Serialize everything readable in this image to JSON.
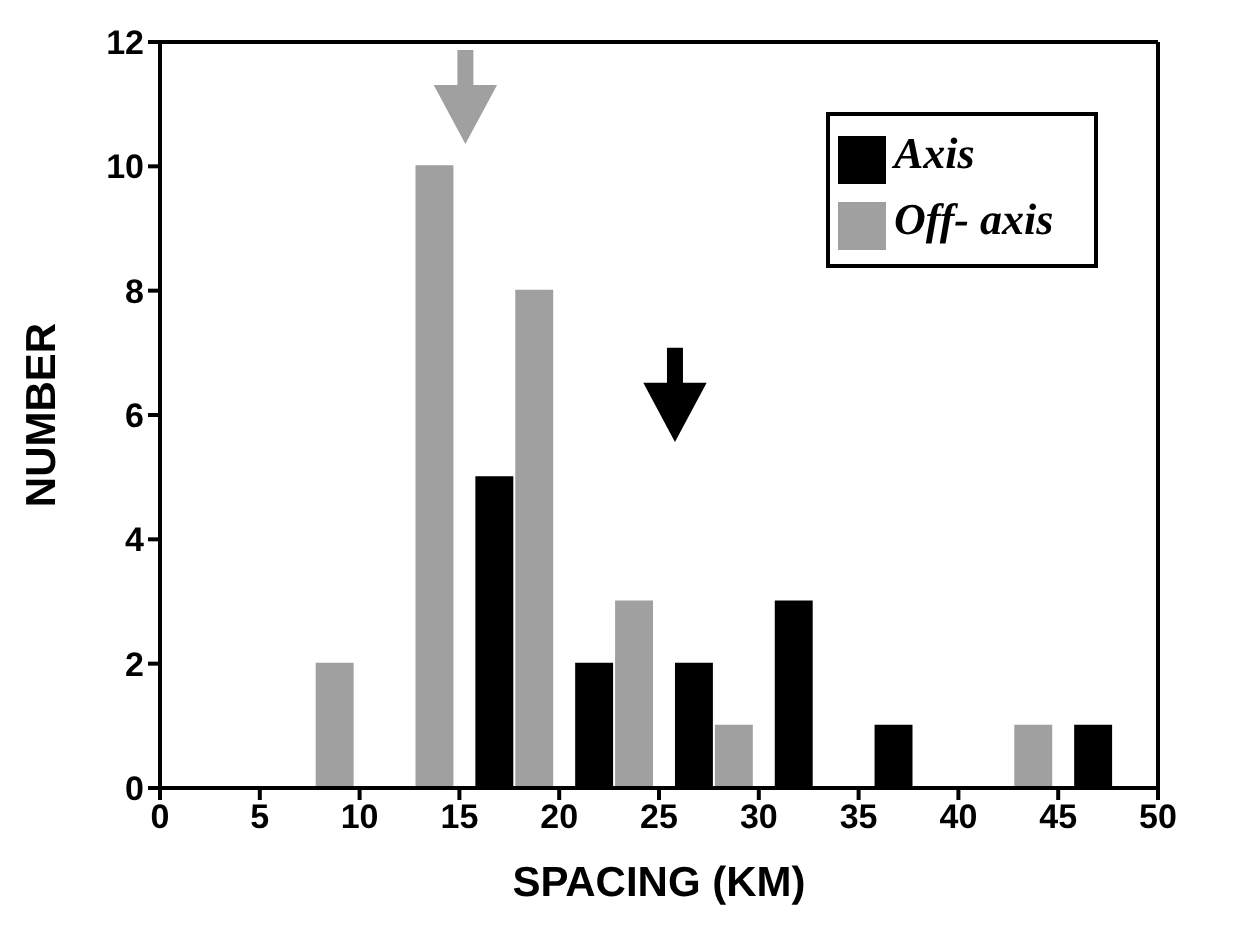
{
  "chart_data": {
    "type": "bar",
    "xlabel": "SPACING (KM)",
    "ylabel": "NUMBER",
    "series": [
      {
        "name": "Axis",
        "color": "#000000",
        "x": [
          16.75,
          21.75,
          26.75,
          31.75,
          36.75,
          46.75
        ],
        "values": [
          5,
          2,
          2,
          3,
          1,
          1
        ]
      },
      {
        "name": "Off- axis",
        "color": "#a0a0a0",
        "x": [
          8.75,
          13.75,
          18.75,
          23.75,
          28.75,
          43.75
        ],
        "values": [
          2,
          10,
          8,
          3,
          1,
          1
        ]
      }
    ],
    "ref_lines": [
      {
        "axis": "x",
        "value": 15.3,
        "color": "#a0a0a0"
      },
      {
        "axis": "x",
        "value": 25.8,
        "color": "#000000"
      }
    ],
    "xlim": [
      0,
      50
    ],
    "xticks": [
      0,
      5,
      10,
      15,
      20,
      25,
      30,
      35,
      40,
      45,
      50
    ],
    "ylim": [
      0,
      12
    ],
    "yticks": [
      0,
      2,
      4,
      6,
      8,
      10,
      12
    ],
    "legend": "top right",
    "grid": false
  }
}
